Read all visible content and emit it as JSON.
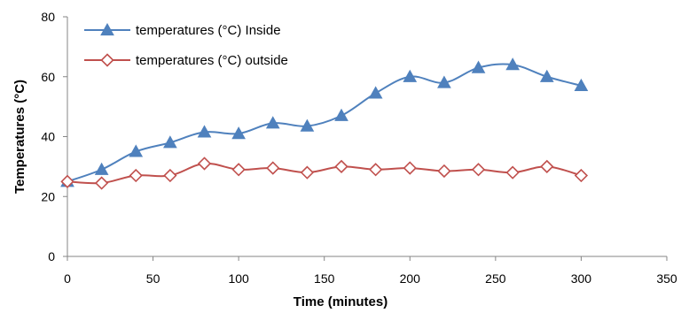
{
  "chart_data": {
    "type": "line",
    "title": "",
    "xlabel": "Time (minutes)",
    "ylabel": "Temperatures (°C)",
    "xlim": [
      0,
      350
    ],
    "ylim": [
      0,
      80
    ],
    "xticks": [
      0,
      50,
      100,
      150,
      200,
      250,
      300,
      350
    ],
    "yticks": [
      0,
      20,
      40,
      60,
      80
    ],
    "grid": false,
    "legend_position": "top-left",
    "series": [
      {
        "name": "temperatures (°C) Inside",
        "color": "#4f81bd",
        "marker": "triangle",
        "x": [
          0,
          20,
          40,
          60,
          80,
          100,
          120,
          140,
          160,
          180,
          200,
          220,
          240,
          260,
          280,
          300
        ],
        "y": [
          25,
          29,
          35,
          38,
          41.5,
          41,
          44.5,
          43.5,
          47,
          54.5,
          60,
          58,
          63,
          64,
          60,
          57
        ]
      },
      {
        "name": "temperatures (°C) outside",
        "color": "#c0504d",
        "marker": "diamond",
        "x": [
          0,
          20,
          40,
          60,
          80,
          100,
          120,
          140,
          160,
          180,
          200,
          220,
          240,
          260,
          280,
          300
        ],
        "y": [
          25,
          24.5,
          27,
          27,
          31,
          29,
          29.5,
          28,
          30,
          29,
          29.5,
          28.5,
          29,
          28,
          30,
          27
        ]
      }
    ]
  }
}
